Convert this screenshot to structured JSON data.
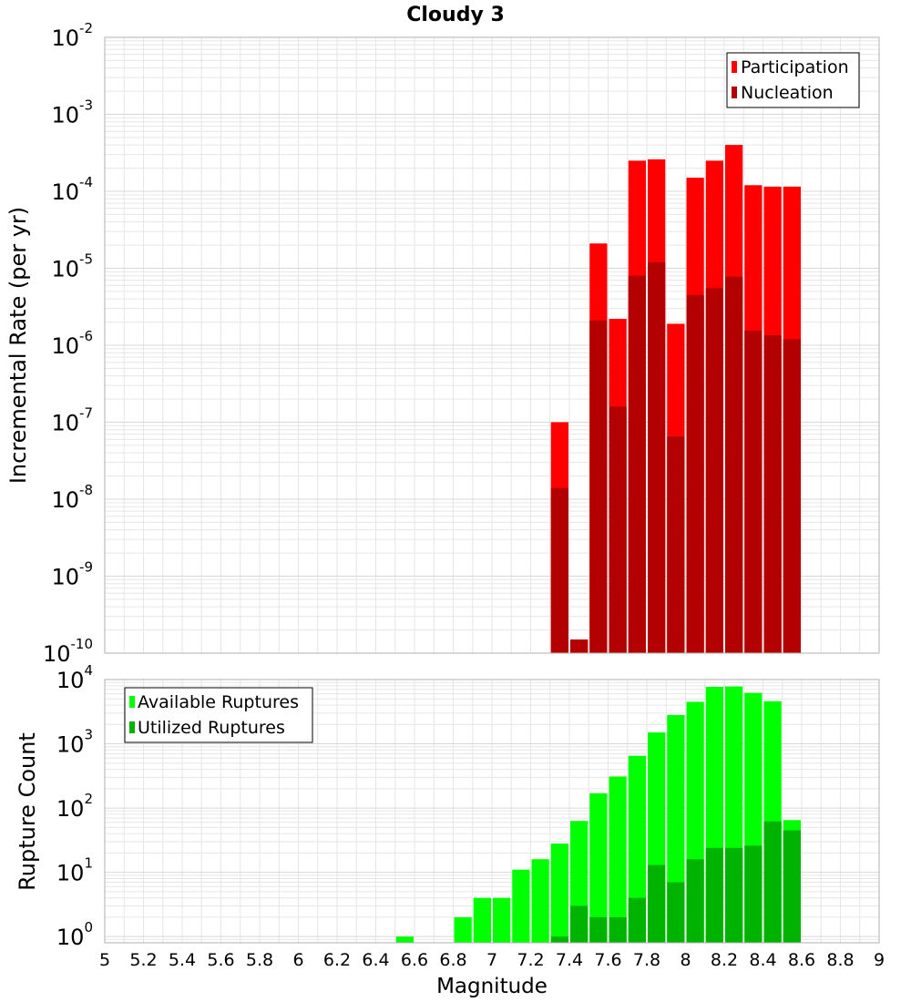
{
  "title": "Cloudy 3",
  "colors": {
    "participation": "#ff0000",
    "nucleation": "#b30000",
    "available": "#00ff00",
    "utilized": "#00b300",
    "grid": "#e6e6e6",
    "frame": "#b0b0b0"
  },
  "chart_data": [
    {
      "type": "bar",
      "title": "Cloudy 3",
      "xlabel": "Magnitude",
      "ylabel": "Incremental Rate (per yr)",
      "yscale": "log",
      "xlim": [
        5,
        9
      ],
      "ylim": [
        1e-10,
        0.01
      ],
      "bin_width": 0.1,
      "grid": true,
      "legend_position": "top-right",
      "series": [
        {
          "name": "Participation",
          "x": [
            7.35,
            7.45,
            7.55,
            7.65,
            7.75,
            7.85,
            7.95,
            8.05,
            8.15,
            8.25,
            8.35,
            8.45,
            8.55
          ],
          "values": [
            1e-07,
            1.5e-10,
            2.1e-05,
            2.2e-06,
            0.00025,
            0.00026,
            1.9e-06,
            0.00015,
            0.00025,
            0.0004,
            0.00012,
            0.000115,
            0.000115
          ]
        },
        {
          "name": "Nucleation",
          "x": [
            7.35,
            7.45,
            7.55,
            7.65,
            7.75,
            7.85,
            7.95,
            8.05,
            8.15,
            8.25,
            8.35,
            8.45,
            8.55
          ],
          "values": [
            1.4e-08,
            1.5e-10,
            2.1e-06,
            1.6e-07,
            8e-06,
            1.2e-05,
            6.5e-08,
            4.5e-06,
            5.5e-06,
            7.8e-06,
            1.55e-06,
            1.35e-06,
            1.2e-06
          ]
        }
      ]
    },
    {
      "type": "bar",
      "xlabel": "Magnitude",
      "ylabel": "Rupture Count",
      "yscale": "log",
      "xlim": [
        5,
        9
      ],
      "ylim": [
        0.8,
        10000
      ],
      "bin_width": 0.1,
      "grid": true,
      "legend_position": "top-left",
      "x_ticks": [
        "5",
        "5.2",
        "5.4",
        "5.6",
        "5.8",
        "6",
        "6.2",
        "6.4",
        "6.6",
        "6.8",
        "7",
        "7.2",
        "7.4",
        "7.6",
        "7.8",
        "8",
        "8.2",
        "8.4",
        "8.6",
        "8.8",
        "9"
      ],
      "series": [
        {
          "name": "Available Ruptures",
          "x": [
            6.55,
            6.85,
            6.95,
            7.05,
            7.15,
            7.25,
            7.35,
            7.45,
            7.55,
            7.65,
            7.75,
            7.85,
            7.95,
            8.05,
            8.15,
            8.25,
            8.35,
            8.45,
            8.55
          ],
          "values": [
            1,
            2,
            4,
            4,
            11,
            16,
            28,
            63,
            170,
            310,
            650,
            1500,
            2800,
            4500,
            7700,
            7800,
            6200,
            4600,
            65
          ]
        },
        {
          "name": "Utilized Ruptures",
          "x": [
            7.35,
            7.45,
            7.55,
            7.65,
            7.75,
            7.85,
            7.95,
            8.05,
            8.15,
            8.25,
            8.35,
            8.45,
            8.55
          ],
          "values": [
            1,
            3,
            2,
            2,
            4,
            13,
            7,
            16,
            24,
            24,
            26,
            62,
            45
          ]
        }
      ]
    }
  ]
}
